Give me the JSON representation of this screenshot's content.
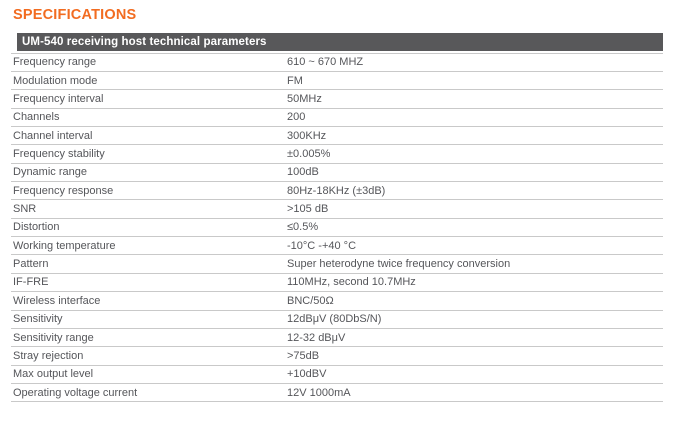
{
  "page": {
    "title": "SPECIFICATIONS"
  },
  "colors": {
    "accent_orange": "#f26c21",
    "header_bar_gray": "#58585a",
    "row_text_gray": "#55565a",
    "divider_gray": "#c9c9c9"
  },
  "table": {
    "header": "UM-540 receiving host technical parameters",
    "rows": [
      {
        "label": "Frequency range",
        "value": "610 ~ 670 MHZ"
      },
      {
        "label": "Modulation mode",
        "value": "FM"
      },
      {
        "label": "Frequency interval",
        "value": "50MHz"
      },
      {
        "label": "Channels",
        "value": "200"
      },
      {
        "label": "Channel interval",
        "value": "300KHz"
      },
      {
        "label": "Frequency stability",
        "value": "±0.005%"
      },
      {
        "label": "Dynamic range",
        "value": "100dB"
      },
      {
        "label": "Frequency response",
        "value": "80Hz-18KHz (±3dB)"
      },
      {
        "label": "SNR",
        "value": ">105 dB"
      },
      {
        "label": "Distortion",
        "value": "≤0.5%"
      },
      {
        "label": "Working temperature",
        "value": "-10°C -+40 °C"
      },
      {
        "label": "Pattern",
        "value": "Super heterodyne twice frequency conversion"
      },
      {
        "label": "IF-FRE",
        "value": "110MHz, second 10.7MHz"
      },
      {
        "label": "Wireless interface",
        "value": "BNC/50Ω"
      },
      {
        "label": "Sensitivity",
        "value": "12dBμV (80DbS/N)"
      },
      {
        "label": "Sensitivity range",
        "value": "12-32 dBμV"
      },
      {
        "label": "Stray rejection",
        "value": ">75dB"
      },
      {
        "label": "Max output level",
        "value": "+10dBV"
      },
      {
        "label": "Operating voltage current",
        "value": "12V 1000mA"
      }
    ]
  }
}
